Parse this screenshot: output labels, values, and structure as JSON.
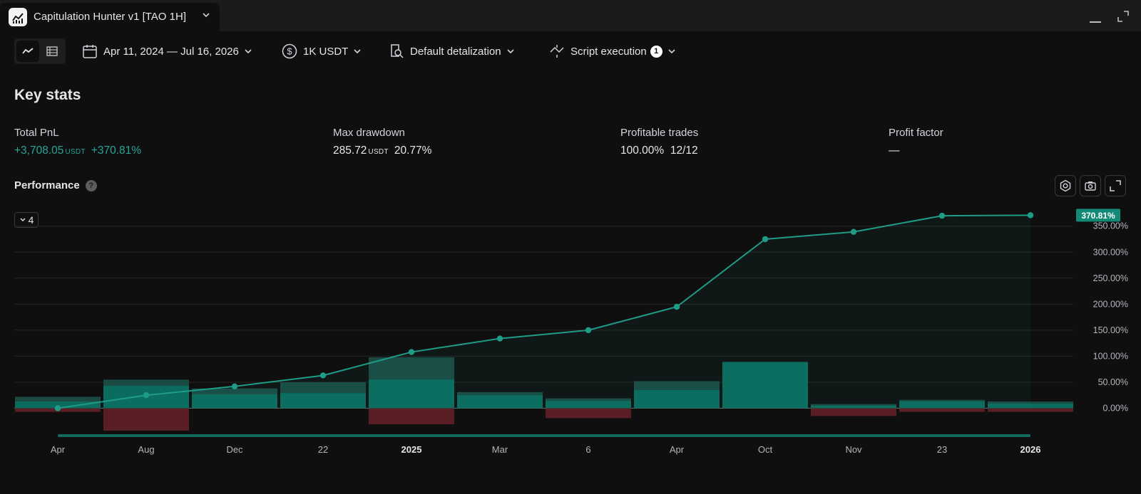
{
  "window": {
    "tab_title": "Capitulation Hunter v1 [TAO 1H]",
    "icons": [
      "chart-app-icon",
      "chevron-down-icon",
      "minimize-icon",
      "maximize-icon"
    ]
  },
  "toolbar": {
    "view_toggle_icons": [
      "line-chart-icon",
      "table-icon"
    ],
    "date_range": "Apr 11, 2024 — Jul 16, 2026",
    "capital": "1K USDT",
    "detalization": "Default detalization",
    "script_execution": "Script execution",
    "script_execution_badge": "1"
  },
  "key_stats": {
    "title": "Key stats",
    "total_pnl": {
      "label": "Total PnL",
      "value": "+3,708.05",
      "unit": "USDT",
      "percent": "+370.81%"
    },
    "max_drawdown": {
      "label": "Max drawdown",
      "value": "285.72",
      "unit": "USDT",
      "percent": "20.77%"
    },
    "profitable_trades": {
      "label": "Profitable trades",
      "percent": "100.00%",
      "ratio": "12/12"
    },
    "profit_factor": {
      "label": "Profit factor",
      "value": "—"
    }
  },
  "performance": {
    "title": "Performance",
    "help": "?",
    "collapse_label": "4",
    "action_icons": [
      "settings-icon",
      "camera-icon",
      "fullscreen-icon"
    ]
  },
  "colors": {
    "positive": "#26a69a",
    "bar_teal": "#0a6b5e",
    "bar_teal_light": "#1a4a42",
    "bar_red": "#5a1f24",
    "line": "#1f9c88"
  },
  "chart_data": {
    "type": "line",
    "x_labels": [
      "Apr",
      "Aug",
      "Dec",
      "22",
      "2025",
      "Mar",
      "6",
      "Apr",
      "Oct",
      "Nov",
      "23",
      "2026"
    ],
    "x_labels_bold": [
      "2025",
      "2026"
    ],
    "y_ticks": [
      "0.00%",
      "50.00%",
      "100.00%",
      "150.00%",
      "200.00%",
      "250.00%",
      "300.00%",
      "350.00%"
    ],
    "ylim": [
      0,
      350
    ],
    "line_values": [
      0,
      25,
      42,
      63,
      108,
      134,
      150,
      195,
      325,
      339,
      370,
      371
    ],
    "bars_positive_dark": [
      22,
      55,
      38,
      50,
      98,
      31,
      19,
      52,
      89,
      8,
      16,
      13
    ],
    "bars_positive": [
      13,
      43,
      27,
      29,
      55,
      25,
      14,
      35,
      89,
      5,
      13,
      9
    ],
    "bars_negative": [
      -7,
      -43,
      0,
      0,
      -31,
      0,
      -19,
      0,
      0,
      -15,
      -7,
      -7
    ],
    "last_value_label": "370.81%"
  }
}
